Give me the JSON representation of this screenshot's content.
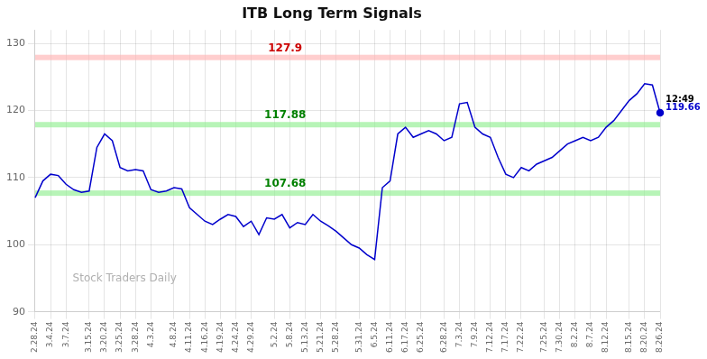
{
  "chart_data": {
    "type": "line",
    "title": "ITB Long Term Signals",
    "categories": [
      "2.28.24",
      null,
      "3.4.24",
      null,
      "3.7.24",
      null,
      null,
      "3.15.24",
      null,
      "3.20.24",
      null,
      "3.25.24",
      null,
      "3.28.24",
      null,
      "4.3.24",
      null,
      null,
      "4.8.24",
      null,
      "4.11.24",
      null,
      "4.16.24",
      null,
      "4.19.24",
      null,
      "4.24.24",
      null,
      "4.29.24",
      null,
      null,
      "5.2.24",
      null,
      "5.8.24",
      null,
      "5.13.24",
      null,
      "5.21.24",
      null,
      "5.28.24",
      null,
      null,
      "5.31.24",
      null,
      "6.5.24",
      null,
      "6.11.24",
      null,
      "6.17.24",
      null,
      "6.25.24",
      null,
      null,
      "6.28.24",
      null,
      "7.3.24",
      null,
      "7.9.24",
      null,
      "7.12.24",
      null,
      "7.17.24",
      null,
      "7.22.24",
      null,
      null,
      "7.25.24",
      null,
      "7.30.24",
      null,
      "8.2.24",
      null,
      "8.7.24",
      null,
      "8.12.24",
      null,
      null,
      "8.15.24",
      null,
      "8.20.24",
      null,
      "8.26.24"
    ],
    "values": [
      107.0,
      109.5,
      110.5,
      110.3,
      109.0,
      108.2,
      107.8,
      108.0,
      114.5,
      116.5,
      115.5,
      111.5,
      111.0,
      111.2,
      111.0,
      108.2,
      107.8,
      108.0,
      108.5,
      108.3,
      105.5,
      104.5,
      103.5,
      103.0,
      103.8,
      104.5,
      104.2,
      102.7,
      103.5,
      101.5,
      104.0,
      103.8,
      104.5,
      102.5,
      103.3,
      103.0,
      104.5,
      103.5,
      102.8,
      102.0,
      101.0,
      100.0,
      99.5,
      98.5,
      97.8,
      108.5,
      109.5,
      116.5,
      117.5,
      116.0,
      116.5,
      117.0,
      116.5,
      115.5,
      116.0,
      121.0,
      121.2,
      117.5,
      116.5,
      116.0,
      113.0,
      110.5,
      110.0,
      111.5,
      111.0,
      112.0,
      112.5,
      113.0,
      114.0,
      115.0,
      115.5,
      116.0,
      115.5,
      116.0,
      117.5,
      118.5,
      120.0,
      121.5,
      122.5,
      124.0,
      123.8,
      119.66
    ],
    "color": "#0000cc",
    "ylim": [
      90,
      132
    ],
    "yticks": [
      90,
      100,
      110,
      120,
      130
    ],
    "grid": true,
    "hlines": [
      {
        "value": 127.9,
        "color": "#ffb3b3",
        "label": "127.9",
        "label_color": "#cc0000"
      },
      {
        "value": 117.88,
        "color": "#90ee90",
        "label": "117.88",
        "label_color": "#008000"
      },
      {
        "value": 107.68,
        "color": "#90ee90",
        "label": "107.68",
        "label_color": "#008000"
      }
    ],
    "last_point_labels": [
      {
        "text": "12:49",
        "color": "#000000"
      },
      {
        "text": "119.66",
        "color": "#0000cc"
      }
    ],
    "watermark": {
      "text": "Stock Traders Daily",
      "color": "#b0b0b0"
    }
  }
}
